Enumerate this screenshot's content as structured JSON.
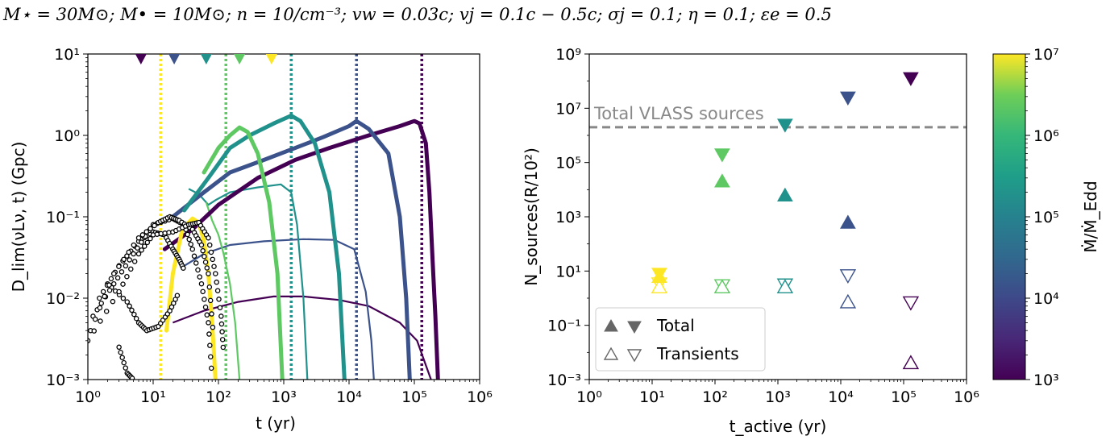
{
  "header": {
    "params": "M⋆ = 30M⊙;    M• = 10M⊙;    n = 10/cm⁻³;    vw = 0.03c;    vj = 0.1c − 0.5c;    σj = 0.1;    η = 0.1;    εe = 0.5"
  },
  "colors": {
    "1e3": "#440154",
    "1e4": "#3b528b",
    "1e5": "#21918c",
    "1e6": "#5ec962",
    "1e7": "#fde725",
    "dashed_line": "#888888",
    "open_marker_fill": "#ffffff"
  },
  "chart_data": [
    {
      "type": "line",
      "panel": "left",
      "xlabel": "t (yr)",
      "ylabel": "D_lim(νLν, t) (Gpc)",
      "xscale": "log",
      "yscale": "log",
      "xlim": [
        1,
        1000000
      ],
      "ylim": [
        0.001,
        10
      ],
      "x_tick_labels": [
        "10⁰",
        "10¹",
        "10²",
        "10³",
        "10⁴",
        "10⁵",
        "10⁶"
      ],
      "y_tick_labels": [
        "10⁻³",
        "10⁻²",
        "10⁻¹",
        "10⁰",
        "10¹"
      ],
      "grid": false,
      "lifetime_markers": [
        {
          "mdot": "1e3",
          "t_marker": 6.5,
          "t_active": 130000
        },
        {
          "mdot": "1e4",
          "t_marker": 21,
          "t_active": 13000
        },
        {
          "mdot": "1e5",
          "t_marker": 65,
          "t_active": 1300
        },
        {
          "mdot": "1e6",
          "t_marker": 210,
          "t_active": 130
        },
        {
          "mdot": "1e7",
          "t_marker": 650,
          "t_active": 13
        }
      ],
      "series": [
        {
          "mdot": "1e3",
          "kind": "total",
          "points": [
            [
              15,
              0.04
            ],
            [
              40,
              0.07
            ],
            [
              100,
              0.14
            ],
            [
              400,
              0.3
            ],
            [
              1500,
              0.5
            ],
            [
              5000,
              0.7
            ],
            [
              20000,
              1.0
            ],
            [
              60000,
              1.3
            ],
            [
              100000,
              1.5
            ],
            [
              120000,
              1.4
            ],
            [
              150000,
              0.8
            ],
            [
              170000,
              0.2
            ],
            [
              190000,
              0.03
            ],
            [
              210000,
              0.006
            ],
            [
              230000,
              0.001
            ]
          ]
        },
        {
          "mdot": "1e4",
          "kind": "total",
          "points": [
            [
              20,
              0.1
            ],
            [
              60,
              0.2
            ],
            [
              150,
              0.35
            ],
            [
              500,
              0.5
            ],
            [
              1500,
              0.7
            ],
            [
              4000,
              0.95
            ],
            [
              10000,
              1.3
            ],
            [
              13000,
              1.5
            ],
            [
              20000,
              1.2
            ],
            [
              40000,
              0.6
            ],
            [
              60000,
              0.1
            ],
            [
              75000,
              0.01
            ],
            [
              85000,
              0.001
            ]
          ]
        },
        {
          "mdot": "1e5",
          "kind": "total",
          "points": [
            [
              30,
              0.12
            ],
            [
              70,
              0.3
            ],
            [
              150,
              0.7
            ],
            [
              300,
              1.0
            ],
            [
              700,
              1.4
            ],
            [
              1300,
              1.75
            ],
            [
              1800,
              1.5
            ],
            [
              3000,
              0.8
            ],
            [
              5000,
              0.2
            ],
            [
              7000,
              0.02
            ],
            [
              8500,
              0.001
            ]
          ]
        },
        {
          "mdot": "1e6",
          "kind": "total",
          "points": [
            [
              60,
              0.35
            ],
            [
              100,
              0.7
            ],
            [
              150,
              1.0
            ],
            [
              210,
              1.25
            ],
            [
              280,
              1.1
            ],
            [
              400,
              0.6
            ],
            [
              600,
              0.15
            ],
            [
              800,
              0.02
            ],
            [
              950,
              0.001
            ]
          ]
        },
        {
          "mdot": "1e7",
          "kind": "total",
          "points": [
            [
              16,
              0.004
            ],
            [
              20,
              0.02
            ],
            [
              28,
              0.07
            ],
            [
              40,
              0.095
            ],
            [
              50,
              0.085
            ],
            [
              60,
              0.05
            ],
            [
              70,
              0.02
            ],
            [
              80,
              0.005
            ],
            [
              90,
              0.001
            ]
          ]
        },
        {
          "mdot": "1e3",
          "kind": "transient",
          "points": [
            [
              20,
              0.005
            ],
            [
              60,
              0.007
            ],
            [
              200,
              0.009
            ],
            [
              700,
              0.0105
            ],
            [
              2000,
              0.0105
            ],
            [
              7000,
              0.0095
            ],
            [
              20000,
              0.008
            ],
            [
              60000,
              0.005
            ],
            [
              110000,
              0.003
            ],
            [
              150000,
              0.0015
            ],
            [
              180000,
              0.001
            ]
          ]
        },
        {
          "mdot": "1e4",
          "kind": "transient",
          "points": [
            [
              30,
              0.025
            ],
            [
              60,
              0.035
            ],
            [
              150,
              0.045
            ],
            [
              500,
              0.05
            ],
            [
              2000,
              0.053
            ],
            [
              6000,
              0.052
            ],
            [
              12000,
              0.04
            ],
            [
              18000,
              0.012
            ],
            [
              22000,
              0.003
            ],
            [
              24000,
              0.001
            ]
          ]
        },
        {
          "mdot": "1e5",
          "kind": "transient",
          "points": [
            [
              35,
              0.22
            ],
            [
              50,
              0.19
            ],
            [
              70,
              0.14
            ],
            [
              90,
              0.16
            ],
            [
              150,
              0.2
            ],
            [
              400,
              0.23
            ],
            [
              900,
              0.25
            ],
            [
              1300,
              0.2
            ],
            [
              1600,
              0.08
            ],
            [
              2000,
              0.01
            ],
            [
              2300,
              0.001
            ]
          ]
        },
        {
          "mdot": "1e6",
          "kind": "transient",
          "points": [
            [
              65,
              0.15
            ],
            [
              80,
              0.09
            ],
            [
              100,
              0.06
            ],
            [
              120,
              0.035
            ],
            [
              150,
              0.015
            ],
            [
              180,
              0.005
            ],
            [
              210,
              0.001
            ]
          ]
        }
      ],
      "model_points": [
        {
          "mdot": "1e3",
          "points": [
            [
              2,
              0.015
            ],
            [
              4,
              0.009
            ],
            [
              6,
              0.005
            ],
            [
              8,
              0.004
            ],
            [
              12,
              0.0045
            ],
            [
              18,
              0.007
            ],
            [
              25,
              0.012
            ]
          ]
        },
        {
          "mdot": "1e4",
          "points": [
            [
              1.5,
              0.01
            ],
            [
              3,
              0.025
            ],
            [
              6,
              0.05
            ],
            [
              10,
              0.065
            ],
            [
              15,
              0.06
            ],
            [
              20,
              0.04
            ],
            [
              25,
              0.03
            ],
            [
              30,
              0.022
            ]
          ]
        },
        {
          "mdot": "1e5",
          "points": [
            [
              1.2,
              0.006
            ],
            [
              2.5,
              0.015
            ],
            [
              5,
              0.035
            ],
            [
              10,
              0.08
            ],
            [
              20,
              0.095
            ],
            [
              30,
              0.08
            ],
            [
              40,
              0.04
            ],
            [
              55,
              0.015
            ],
            [
              70,
              0.005
            ],
            [
              80,
              0.001
            ]
          ]
        },
        {
          "mdot": "1e6",
          "points": [
            [
              1.1,
              0.004
            ],
            [
              2.5,
              0.02
            ],
            [
              6,
              0.055
            ],
            [
              12,
              0.085
            ],
            [
              18,
              0.1
            ],
            [
              25,
              0.09
            ],
            [
              40,
              0.07
            ],
            [
              55,
              0.045
            ],
            [
              70,
              0.02
            ],
            [
              85,
              0.003
            ]
          ]
        },
        {
          "mdot": "1e7",
          "points": [
            [
              1,
              0.003
            ],
            [
              3,
              0.012
            ],
            [
              6,
              0.035
            ],
            [
              10,
              0.06
            ],
            [
              20,
              0.065
            ],
            [
              35,
              0.08
            ],
            [
              50,
              0.085
            ],
            [
              70,
              0.055
            ],
            [
              90,
              0.02
            ],
            [
              110,
              0.006
            ],
            [
              120,
              0.002
            ]
          ]
        },
        {
          "mdot": "1e7",
          "points": [
            [
              3,
              0.0025
            ],
            [
              4,
              0.0012
            ],
            [
              5,
              0.001
            ]
          ]
        }
      ]
    },
    {
      "type": "scatter",
      "panel": "right",
      "xlabel": "t_active (yr)",
      "ylabel": "N_sources(R/10²)",
      "xscale": "log",
      "yscale": "log",
      "xlim": [
        1,
        1000000
      ],
      "ylim": [
        0.001,
        1000000000
      ],
      "x_tick_labels": [
        "10⁰",
        "10¹",
        "10²",
        "10³",
        "10⁴",
        "10⁵",
        "10⁶"
      ],
      "y_tick_labels": [
        "10⁻³",
        "10⁻¹",
        "10¹",
        "10³",
        "10⁵",
        "10⁷",
        "10⁹"
      ],
      "grid": false,
      "hline": {
        "y": 2000000,
        "label": "Total VLASS sources"
      },
      "points": [
        {
          "mdot": "1e7",
          "t_active": 13,
          "total_up": 6,
          "total_down": 8,
          "trans_up": 2.5,
          "trans_down": 3.5
        },
        {
          "mdot": "1e6",
          "t_active": 130,
          "total_up": 20000,
          "total_down": 200000,
          "trans_up": 2.5,
          "trans_down": 3
        },
        {
          "mdot": "1e5",
          "t_active": 1300,
          "total_up": 6000,
          "total_down": 2500000,
          "trans_up": 2.5,
          "trans_down": 3.2
        },
        {
          "mdot": "1e4",
          "t_active": 13000,
          "total_up": 600,
          "total_down": 25000000,
          "trans_up": 0.7,
          "trans_down": 7
        },
        {
          "mdot": "1e3",
          "t_active": 130000,
          "total_up": null,
          "total_down": 130000000,
          "trans_up": 0.004,
          "trans_down": 0.7
        }
      ],
      "legend": {
        "location": "lower-left",
        "entries": [
          "Total",
          "Transients"
        ]
      }
    },
    {
      "type": "colorbar",
      "label": "Ṁ/Ṁ_Edd",
      "scale": "log",
      "range": [
        1000,
        10000000
      ],
      "tick_labels": [
        "10³",
        "10⁴",
        "10⁵",
        "10⁶",
        "10⁷"
      ]
    }
  ]
}
